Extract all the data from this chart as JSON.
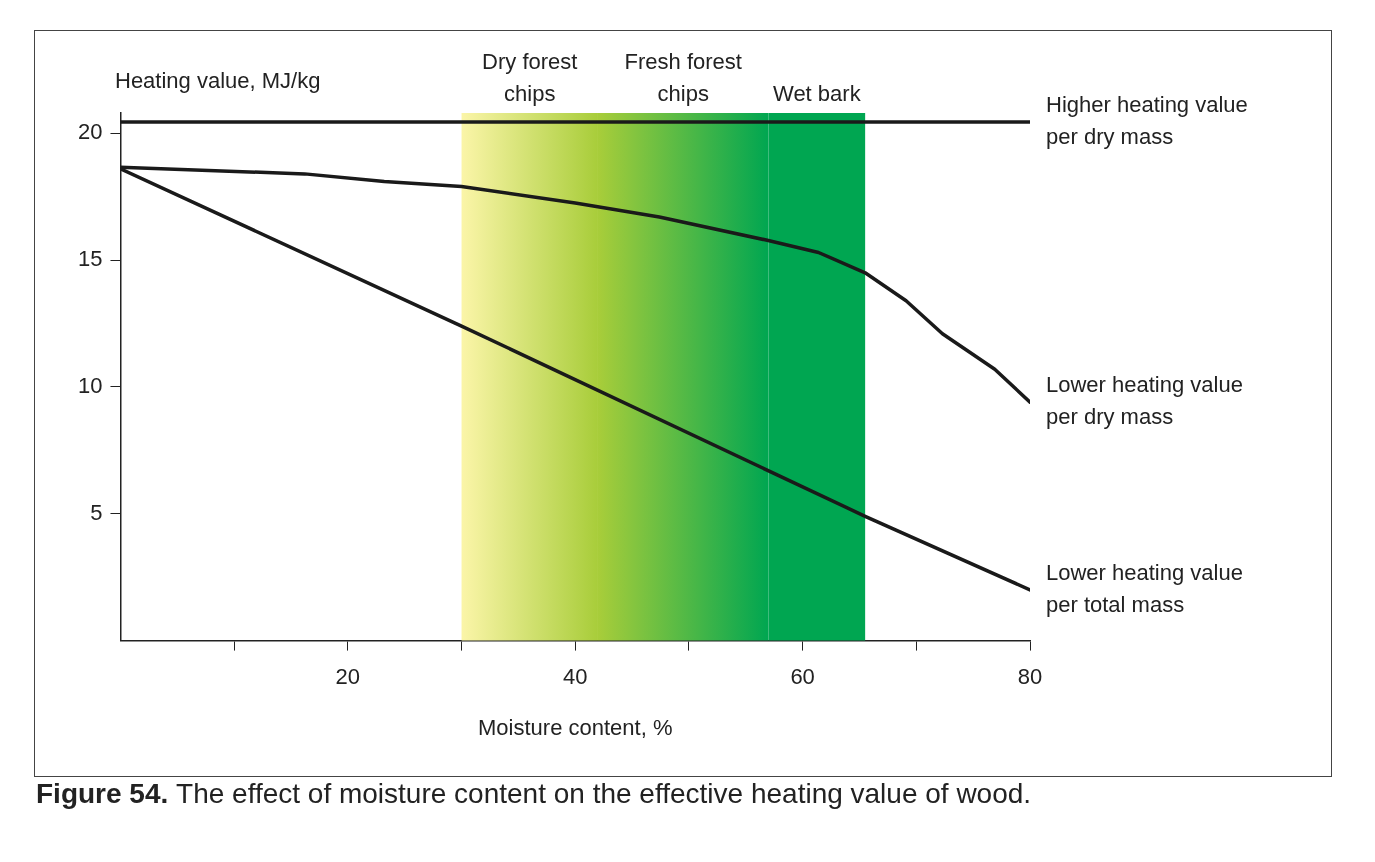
{
  "chart_data": {
    "type": "line",
    "xlabel": "Moisture content, %",
    "ylabel": "Heating value, MJ/kg",
    "xlim": [
      0,
      80
    ],
    "xticks": [
      {
        "value": 10,
        "label": null
      },
      20,
      {
        "value": 30,
        "label": null
      },
      40,
      {
        "value": 50,
        "label": null
      },
      60,
      {
        "value": 70,
        "label": null
      },
      80
    ],
    "ylim": [
      0,
      20.8
    ],
    "yticks": [
      5,
      10,
      15,
      20
    ],
    "grid": false,
    "legend": false,
    "marker": "none",
    "line_style": "solid",
    "series": [
      {
        "name": "Higher heating value per dry mass",
        "color": "#1a1a1a",
        "x": [
          0,
          80
        ],
        "values": [
          20.45,
          20.45
        ]
      },
      {
        "name": "Lower heating value per dry mass",
        "color": "#1a1a1a",
        "x": [
          0,
          16.2,
          23.2,
          30,
          40,
          47.4,
          56.7,
          61.4,
          65.5,
          69.1,
          72.3,
          76.9,
          80
        ],
        "values": [
          18.66,
          18.4,
          18.1,
          17.9,
          17.25,
          16.7,
          15.8,
          15.3,
          14.5,
          13.4,
          12.1,
          10.7,
          9.4
        ]
      },
      {
        "name": "Lower heating value per total mass",
        "color": "#1a1a1a",
        "x": [
          0,
          30,
          65.5,
          80
        ],
        "values": [
          18.6,
          12.4,
          4.9,
          2.0
        ]
      }
    ],
    "bands": [
      {
        "axis": "x",
        "from": 30,
        "to": 42,
        "label": "Dry forest chips",
        "color": "#fbf5a8"
      },
      {
        "axis": "x",
        "from": 42,
        "to": 57,
        "label": "Fresh forest chips",
        "color": "#a8cd3a"
      },
      {
        "axis": "x",
        "from": 57,
        "to": 65.5,
        "label": "Wet bark",
        "color": "#00a651"
      }
    ],
    "annotations": [
      "Figure 54.",
      "The effect of moisture content on the effective heating value of wood."
    ]
  }
}
